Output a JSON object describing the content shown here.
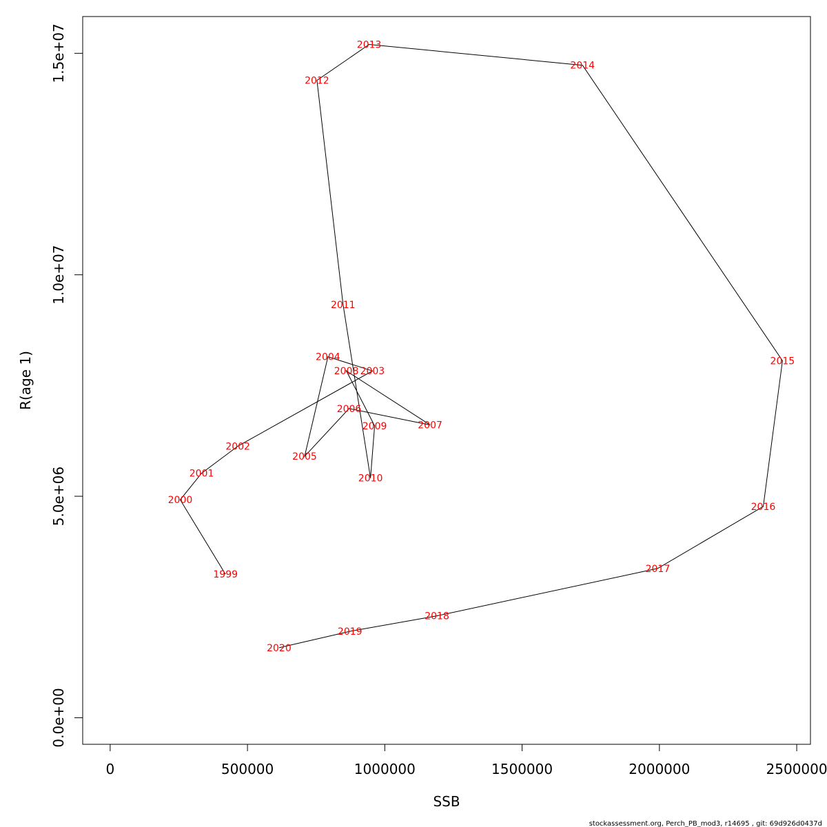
{
  "chart_data": {
    "type": "line",
    "xlabel": "SSB",
    "ylabel": "R(age 1)",
    "xlim": [
      -100000,
      2550000
    ],
    "ylim": [
      -600000,
      15830000
    ],
    "x_ticks": [
      {
        "value": 0,
        "label": "0"
      },
      {
        "value": 500000,
        "label": "500000"
      },
      {
        "value": 1000000,
        "label": "1000000"
      },
      {
        "value": 1500000,
        "label": "1500000"
      },
      {
        "value": 2000000,
        "label": "2000000"
      },
      {
        "value": 2500000,
        "label": "2500000"
      }
    ],
    "y_ticks": [
      {
        "value": 0,
        "label": "0.0e+00"
      },
      {
        "value": 5000000,
        "label": "5.0e+06"
      },
      {
        "value": 10000000,
        "label": "1.0e+07"
      },
      {
        "value": 15000000,
        "label": "1.5e+07"
      }
    ],
    "grid": false,
    "points": [
      {
        "year": "1999",
        "x": 420000,
        "y": 3240000
      },
      {
        "year": "2000",
        "x": 255000,
        "y": 4920000
      },
      {
        "year": "2001",
        "x": 333000,
        "y": 5520000
      },
      {
        "year": "2002",
        "x": 465000,
        "y": 6130000
      },
      {
        "year": "2003",
        "x": 955000,
        "y": 7830000
      },
      {
        "year": "2004",
        "x": 793000,
        "y": 8150000
      },
      {
        "year": "2005",
        "x": 708000,
        "y": 5900000
      },
      {
        "year": "2006",
        "x": 870000,
        "y": 6980000
      },
      {
        "year": "2007",
        "x": 1165000,
        "y": 6610000
      },
      {
        "year": "2008",
        "x": 860000,
        "y": 7830000
      },
      {
        "year": "2009",
        "x": 963000,
        "y": 6590000
      },
      {
        "year": "2010",
        "x": 948000,
        "y": 5410000
      },
      {
        "year": "2011",
        "x": 848000,
        "y": 9330000
      },
      {
        "year": "2012",
        "x": 753000,
        "y": 14390000
      },
      {
        "year": "2013",
        "x": 943000,
        "y": 15200000
      },
      {
        "year": "2014",
        "x": 1720000,
        "y": 14730000
      },
      {
        "year": "2015",
        "x": 2448000,
        "y": 8060000
      },
      {
        "year": "2016",
        "x": 2378000,
        "y": 4770000
      },
      {
        "year": "2017",
        "x": 1994000,
        "y": 3370000
      },
      {
        "year": "2018",
        "x": 1190000,
        "y": 2300000
      },
      {
        "year": "2019",
        "x": 873000,
        "y": 1950000
      },
      {
        "year": "2020",
        "x": 615000,
        "y": 1580000
      }
    ],
    "line_color": "#000000",
    "label_color": "#ff0000"
  },
  "footer": "stockassessment.org, Perch_PB_mod3, r14695 , git: 69d926d0437d"
}
